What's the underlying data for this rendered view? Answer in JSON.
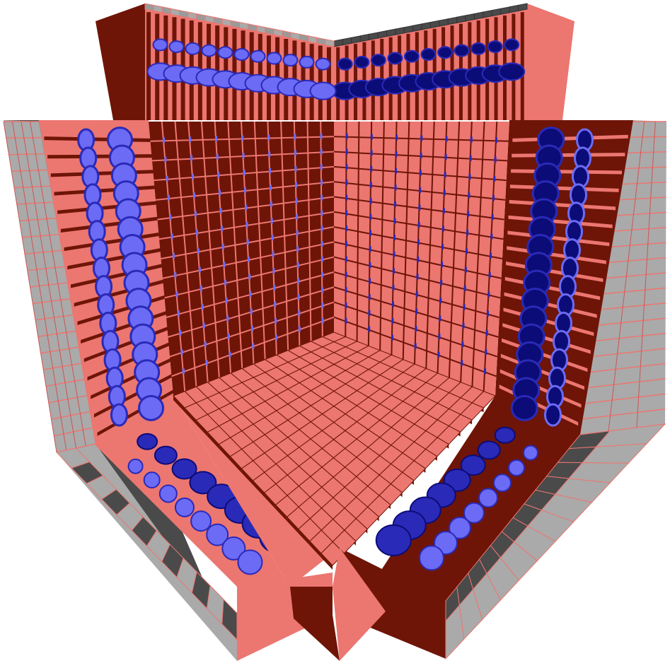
{
  "scene": {
    "subject": "cutaway-cube-lattice",
    "colors": {
      "background": "#ffffff",
      "salmon": "#ec7670",
      "maroon": "#6e1508",
      "gray_light": "#aaaaaa",
      "gray_dark": "#4a4a4a",
      "blue_light": "#6b6bf5",
      "blue_mid": "#2a2ab8",
      "blue_dark": "#0c0c78"
    }
  }
}
